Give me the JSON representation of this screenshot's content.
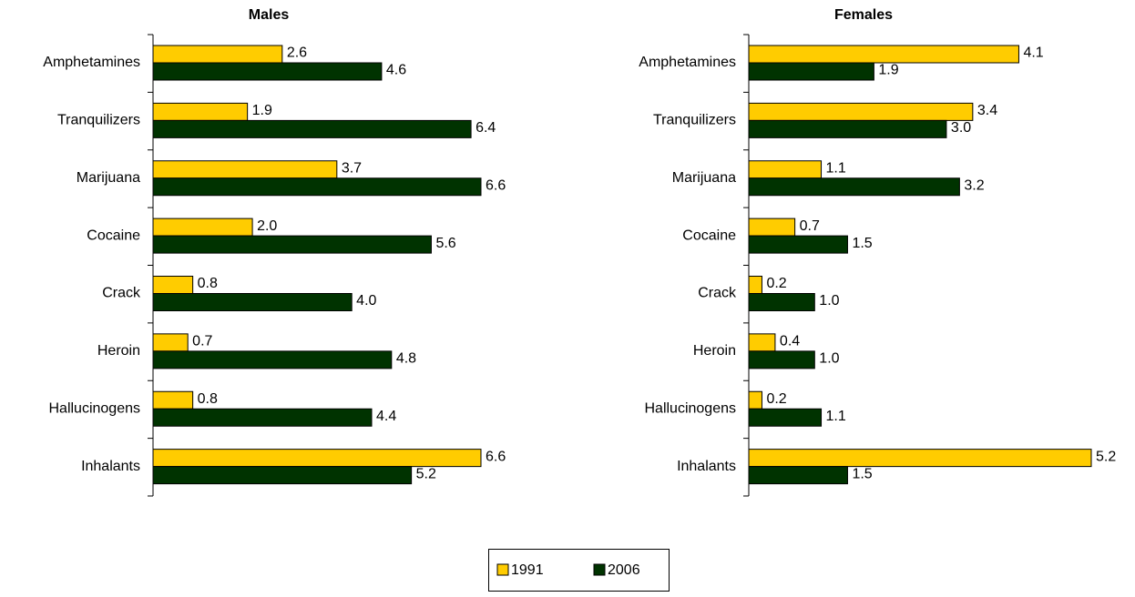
{
  "chart_data": [
    {
      "type": "bar",
      "orientation": "horizontal",
      "title": "Males",
      "categories": [
        "Amphetamines",
        "Tranquilizers",
        "Marijuana",
        "Cocaine",
        "Crack",
        "Heroin",
        "Hallucinogens",
        "Inhalants"
      ],
      "series": [
        {
          "name": "1991",
          "color": "#ffcc00",
          "values": [
            2.6,
            1.9,
            3.7,
            2.0,
            0.8,
            0.7,
            0.8,
            6.6
          ],
          "value_labels": [
            "2.6",
            "1.9",
            "3.7",
            "2.0",
            "0.8",
            "0.7",
            "0.8",
            "6.6"
          ]
        },
        {
          "name": "2006",
          "color": "#003300",
          "values": [
            4.6,
            6.4,
            6.6,
            5.6,
            4.0,
            4.8,
            4.4,
            5.2
          ],
          "value_labels": [
            "4.6",
            "6.4",
            "6.6",
            "5.6",
            "4.0",
            "4.8",
            "4.4",
            "5.2"
          ]
        }
      ],
      "xlim": [
        0,
        6.6
      ],
      "legend": "bottom"
    },
    {
      "type": "bar",
      "orientation": "horizontal",
      "title": "Females",
      "categories": [
        "Amphetamines",
        "Tranquilizers",
        "Marijuana",
        "Cocaine",
        "Crack",
        "Heroin",
        "Hallucinogens",
        "Inhalants"
      ],
      "series": [
        {
          "name": "1991",
          "color": "#ffcc00",
          "values": [
            4.1,
            3.4,
            1.1,
            0.7,
            0.2,
            0.4,
            0.2,
            5.2
          ],
          "value_labels": [
            "4.1",
            "3.4",
            "1.1",
            "0.7",
            "0.2",
            "0.4",
            "0.2",
            "5.2"
          ]
        },
        {
          "name": "2006",
          "color": "#003300",
          "values": [
            1.9,
            3.0,
            3.2,
            1.5,
            1.0,
            1.0,
            1.1,
            1.5
          ],
          "value_labels": [
            "1.9",
            "3.0",
            "3.2",
            "1.5",
            "1.0",
            "1.0",
            "1.1",
            "1.5"
          ]
        }
      ],
      "xlim": [
        0,
        5.2
      ]
    }
  ]
}
